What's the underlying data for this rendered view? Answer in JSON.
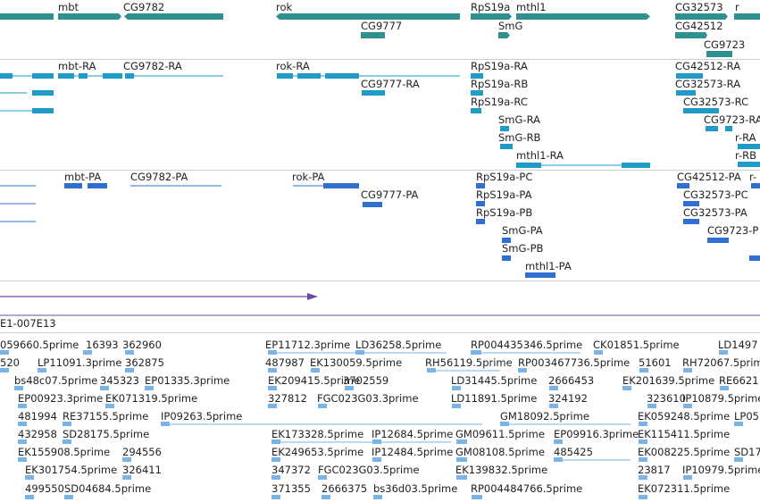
{
  "colors": {
    "gene": "#2f9090",
    "transcript": "#1f9bc8",
    "protein": "#2f6fd0",
    "cdna": "#7ab4e6",
    "purple": "#6a4aa6",
    "separator": "#cfcfcf"
  },
  "genes": [
    "mbt",
    "CG9782",
    "rok",
    "RpS19a",
    "mthl1",
    "CG32573",
    "r",
    "CG9777",
    "SmG",
    "CG42512",
    "CG9723"
  ],
  "transcripts": [
    "mbt-RA",
    "CG9782-RA",
    "rok-RA",
    "RpS19a-RA",
    "CG42512-RA",
    "CG9777-RA",
    "RpS19a-RB",
    "CG32573-RA",
    "RpS19a-RC",
    "CG32573-RC",
    "SmG-RA",
    "CG9723-RA",
    "SmG-RB",
    "r-RA",
    "mthl1-RA",
    "r-RB"
  ],
  "proteins": [
    "mbt-PA",
    "CG9782-PA",
    "rok-PA",
    "RpS19a-PC",
    "CG42512-PA",
    "r-",
    "CG9777-PA",
    "RpS19a-PA",
    "CG32573-PC",
    "RpS19a-PB",
    "CG32573-PA",
    "SmG-PA",
    "CG9723-P",
    "SmG-PB",
    "mthl1-PA"
  ],
  "clone_label": "E1-007E13",
  "cdna": [
    "059660.5prime",
    "16393",
    "362960",
    "EP11712.3prime",
    "LD36258.5prime",
    "RP004435346.5prime",
    "CK01851.5prime",
    "LD1497",
    "520",
    "LP11091.3prime",
    "362875",
    "487987",
    "EK130059.5prime",
    "RH56119.5prime",
    "RP003467736.5prime",
    "51601",
    "RH72067.5prime",
    "bs48c07.5prime",
    "345323",
    "EP01335.3prime",
    "EK209415.5prime",
    "3702559",
    "LD31445.5prime",
    "2666453",
    "EK201639.5prime",
    "RE6621",
    "EP00923.3prime",
    "EK071319.5prime",
    "327812",
    "FGC023G03.3prime",
    "LD11891.5prime",
    "324192",
    "323610",
    "IP10879.5prime",
    "481994",
    "RE37155.5prime",
    "IP09263.5prime",
    "GM18092.5prime",
    "EK059248.5prime",
    "LP05",
    "432958",
    "SD28175.5prime",
    "EK173328.5prime",
    "IP12684.5prime",
    "GM09611.5prime",
    "EP09916.3prime",
    "EK115411.5prime",
    "EK155908.5prime",
    "294556",
    "EK249653.5prime",
    "IP12484.5prime",
    "GM08108.5prime",
    "485425",
    "EK008225.5prime",
    "SD17",
    "EK301754.5prime",
    "326411",
    "347372",
    "FGC023G03.5prime",
    "EK139832.5prime",
    "23817",
    "IP10979.5prime",
    "499550",
    "SD04684.5prime",
    "371355",
    "2666375",
    "bs36d03.5prime",
    "RP004484766.5prime",
    "EK072311.5prime"
  ]
}
